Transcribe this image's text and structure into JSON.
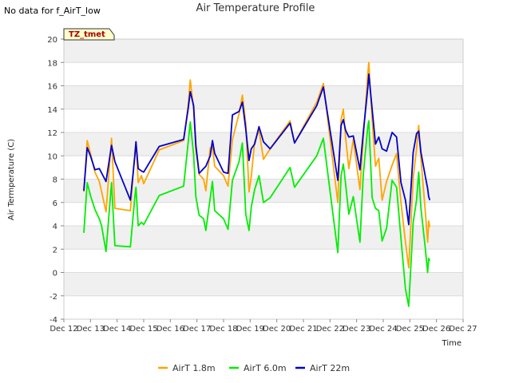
{
  "header": {
    "no_data_note": "No data for f_AirT_low",
    "title": "Air Temperature Profile"
  },
  "tag_box": {
    "text": "TZ_tmet",
    "fill": "#ffffcc",
    "text_color": "#aa0000"
  },
  "colors": {
    "band": "#f0f0f0",
    "grid": "#dcdcdc"
  },
  "chart_data": {
    "type": "line",
    "title": "Air Temperature Profile",
    "xlabel": "Time",
    "ylabel": "Air Termperature (C)",
    "xlim": [
      "2023-12-12",
      "2023-12-27"
    ],
    "ylim": [
      -4,
      20
    ],
    "x_tick_values": [
      "2023-12-12",
      "2023-12-13",
      "2023-12-14",
      "2023-12-15",
      "2023-12-16",
      "2023-12-17",
      "2023-12-18",
      "2023-12-19",
      "2023-12-20",
      "2023-12-21",
      "2023-12-22",
      "2023-12-23",
      "2023-12-24",
      "2023-12-25",
      "2023-12-26",
      "2023-12-27"
    ],
    "x_tick_labels": [
      "Dec 12",
      "Dec 13",
      "Dec 14",
      "Dec 15",
      "Dec 16",
      "Dec 17",
      "Dec 18",
      "Dec 19",
      "Dec 20",
      "Dec 21",
      "Dec 22",
      "Dec 23",
      "Dec 24",
      "Dec 25",
      "Dec 26",
      "Dec 27"
    ],
    "y_ticks": [
      -4,
      -2,
      0,
      2,
      4,
      6,
      8,
      10,
      12,
      14,
      16,
      18,
      20
    ],
    "grid": true,
    "legend_position": "bottom-center",
    "series": [
      {
        "name": "AirT 1.8m",
        "color": "#ffa500",
        "points": [
          [
            "2023-12-12 18:00",
            6.9
          ],
          [
            "2023-12-12 21:00",
            11.3
          ],
          [
            "2023-12-13 00:00",
            10.2
          ],
          [
            "2023-12-13 04:00",
            8.6
          ],
          [
            "2023-12-13 08:00",
            7.8
          ],
          [
            "2023-12-13 14:00",
            5.2
          ],
          [
            "2023-12-13 19:00",
            11.5
          ],
          [
            "2023-12-13 22:00",
            5.5
          ],
          [
            "2023-12-14 12:00",
            5.3
          ],
          [
            "2023-12-14 16:00",
            10.3
          ],
          [
            "2023-12-14 17:00",
            11.2
          ],
          [
            "2023-12-14 19:00",
            7.7
          ],
          [
            "2023-12-14 22:00",
            8.3
          ],
          [
            "2023-12-15 00:00",
            7.6
          ],
          [
            "2023-12-15 14:00",
            10.5
          ],
          [
            "2023-12-16 12:00",
            11.3
          ],
          [
            "2023-12-16 16:00",
            14.3
          ],
          [
            "2023-12-16 18:00",
            16.5
          ],
          [
            "2023-12-16 21:00",
            14.0
          ],
          [
            "2023-12-16 23:00",
            10.5
          ],
          [
            "2023-12-17 02:00",
            8.4
          ],
          [
            "2023-12-17 06:00",
            8.0
          ],
          [
            "2023-12-17 08:00",
            7.0
          ],
          [
            "2023-12-17 12:00",
            10.7
          ],
          [
            "2023-12-17 14:00",
            10.8
          ],
          [
            "2023-12-17 16:00",
            9.1
          ],
          [
            "2023-12-18 00:00",
            8.3
          ],
          [
            "2023-12-18 04:00",
            7.4
          ],
          [
            "2023-12-18 08:00",
            11.4
          ],
          [
            "2023-12-18 14:00",
            13.6
          ],
          [
            "2023-12-18 17:00",
            15.2
          ],
          [
            "2023-12-18 20:00",
            12.8
          ],
          [
            "2023-12-18 23:00",
            6.9
          ],
          [
            "2023-12-19 01:00",
            8.2
          ],
          [
            "2023-12-19 04:00",
            11.2
          ],
          [
            "2023-12-19 08:00",
            12.2
          ],
          [
            "2023-12-19 12:00",
            9.7
          ],
          [
            "2023-12-19 18:00",
            10.6
          ],
          [
            "2023-12-20 12:00",
            13.0
          ],
          [
            "2023-12-20 16:00",
            11.1
          ],
          [
            "2023-12-21 12:00",
            14.6
          ],
          [
            "2023-12-21 18:00",
            16.2
          ],
          [
            "2023-12-22 07:00",
            6.0
          ],
          [
            "2023-12-22 10:00",
            13.1
          ],
          [
            "2023-12-22 12:00",
            14.0
          ],
          [
            "2023-12-22 14:00",
            11.6
          ],
          [
            "2023-12-22 17:00",
            8.9
          ],
          [
            "2023-12-22 21:00",
            11.4
          ],
          [
            "2023-12-23 03:00",
            7.1
          ],
          [
            "2023-12-23 06:00",
            11.5
          ],
          [
            "2023-12-23 10:00",
            17.0
          ],
          [
            "2023-12-23 11:00",
            18.0
          ],
          [
            "2023-12-23 14:00",
            13.1
          ],
          [
            "2023-12-23 17:00",
            9.1
          ],
          [
            "2023-12-23 20:00",
            9.8
          ],
          [
            "2023-12-23 23:00",
            6.2
          ],
          [
            "2023-12-24 03:00",
            7.8
          ],
          [
            "2023-12-24 08:00",
            9.2
          ],
          [
            "2023-12-24 12:00",
            10.2
          ],
          [
            "2023-12-24 16:00",
            6.0
          ],
          [
            "2023-12-24 20:00",
            2.6
          ],
          [
            "2023-12-24 23:00",
            0.4
          ],
          [
            "2023-12-25 03:00",
            8.1
          ],
          [
            "2023-12-25 06:00",
            10.6
          ],
          [
            "2023-12-25 08:00",
            12.6
          ],
          [
            "2023-12-25 10:00",
            9.8
          ],
          [
            "2023-12-25 14:00",
            5.1
          ],
          [
            "2023-12-25 16:00",
            2.6
          ],
          [
            "2023-12-25 17:00",
            4.4
          ],
          [
            "2023-12-25 18:00",
            3.9
          ]
        ]
      },
      {
        "name": "AirT 6.0m",
        "color": "#00ee00",
        "points": [
          [
            "2023-12-12 18:00",
            3.4
          ],
          [
            "2023-12-12 21:00",
            7.7
          ],
          [
            "2023-12-13 00:00",
            6.6
          ],
          [
            "2023-12-13 04:00",
            5.4
          ],
          [
            "2023-12-13 08:00",
            4.6
          ],
          [
            "2023-12-13 10:00",
            4.0
          ],
          [
            "2023-12-13 14:00",
            1.8
          ],
          [
            "2023-12-13 19:00",
            7.7
          ],
          [
            "2023-12-13 22:00",
            2.3
          ],
          [
            "2023-12-14 12:00",
            2.2
          ],
          [
            "2023-12-14 16:00",
            6.5
          ],
          [
            "2023-12-14 17:00",
            7.3
          ],
          [
            "2023-12-14 19:00",
            4.0
          ],
          [
            "2023-12-14 22:00",
            4.3
          ],
          [
            "2023-12-15 00:00",
            4.1
          ],
          [
            "2023-12-15 14:00",
            6.6
          ],
          [
            "2023-12-16 12:00",
            7.4
          ],
          [
            "2023-12-16 16:00",
            11.1
          ],
          [
            "2023-12-16 18:00",
            12.9
          ],
          [
            "2023-12-16 21:00",
            10.1
          ],
          [
            "2023-12-16 23:00",
            6.5
          ],
          [
            "2023-12-17 02:00",
            4.9
          ],
          [
            "2023-12-17 06:00",
            4.6
          ],
          [
            "2023-12-17 08:00",
            3.6
          ],
          [
            "2023-12-17 12:00",
            6.4
          ],
          [
            "2023-12-17 14:00",
            7.8
          ],
          [
            "2023-12-17 16:00",
            5.3
          ],
          [
            "2023-12-18 00:00",
            4.6
          ],
          [
            "2023-12-18 04:00",
            3.7
          ],
          [
            "2023-12-18 08:00",
            7.9
          ],
          [
            "2023-12-18 14:00",
            9.5
          ],
          [
            "2023-12-18 17:00",
            11.1
          ],
          [
            "2023-12-18 20:00",
            5.0
          ],
          [
            "2023-12-18 23:00",
            3.6
          ],
          [
            "2023-12-19 01:00",
            5.6
          ],
          [
            "2023-12-19 04:00",
            7.1
          ],
          [
            "2023-12-19 08:00",
            8.3
          ],
          [
            "2023-12-19 12:00",
            6.0
          ],
          [
            "2023-12-19 18:00",
            6.4
          ],
          [
            "2023-12-20 12:00",
            9.0
          ],
          [
            "2023-12-20 16:00",
            7.3
          ],
          [
            "2023-12-21 12:00",
            10.0
          ],
          [
            "2023-12-21 18:00",
            11.5
          ],
          [
            "2023-12-22 07:00",
            1.7
          ],
          [
            "2023-12-22 10:00",
            8.3
          ],
          [
            "2023-12-22 12:00",
            9.3
          ],
          [
            "2023-12-22 14:00",
            7.6
          ],
          [
            "2023-12-22 17:00",
            5.0
          ],
          [
            "2023-12-22 21:00",
            6.5
          ],
          [
            "2023-12-23 03:00",
            2.6
          ],
          [
            "2023-12-23 06:00",
            8.4
          ],
          [
            "2023-12-23 10:00",
            12.5
          ],
          [
            "2023-12-23 11:00",
            13.0
          ],
          [
            "2023-12-23 14:00",
            6.4
          ],
          [
            "2023-12-23 17:00",
            5.5
          ],
          [
            "2023-12-23 20:00",
            5.3
          ],
          [
            "2023-12-23 23:00",
            2.7
          ],
          [
            "2023-12-24 03:00",
            3.8
          ],
          [
            "2023-12-24 08:00",
            7.9
          ],
          [
            "2023-12-24 12:00",
            7.3
          ],
          [
            "2023-12-24 16:00",
            2.9
          ],
          [
            "2023-12-24 20:00",
            -1.4
          ],
          [
            "2023-12-24 23:00",
            -2.9
          ],
          [
            "2023-12-25 03:00",
            4.3
          ],
          [
            "2023-12-25 06:00",
            6.2
          ],
          [
            "2023-12-25 08:00",
            8.6
          ],
          [
            "2023-12-25 10:00",
            5.5
          ],
          [
            "2023-12-25 14:00",
            2.0
          ],
          [
            "2023-12-25 16:00",
            0.0
          ],
          [
            "2023-12-25 17:00",
            1.2
          ],
          [
            "2023-12-25 18:00",
            1.0
          ]
        ]
      },
      {
        "name": "AirT 22m",
        "color": "#0000cc",
        "points": [
          [
            "2023-12-12 18:00",
            7.0
          ],
          [
            "2023-12-12 21:00",
            10.7
          ],
          [
            "2023-12-13 00:00",
            10.0
          ],
          [
            "2023-12-13 04:00",
            8.8
          ],
          [
            "2023-12-13 08:00",
            8.9
          ],
          [
            "2023-12-13 14:00",
            7.8
          ],
          [
            "2023-12-13 19:00",
            10.9
          ],
          [
            "2023-12-13 22:00",
            9.5
          ],
          [
            "2023-12-14 12:00",
            6.2
          ],
          [
            "2023-12-14 16:00",
            10.0
          ],
          [
            "2023-12-14 17:00",
            11.2
          ],
          [
            "2023-12-14 19:00",
            8.9
          ],
          [
            "2023-12-14 22:00",
            8.7
          ],
          [
            "2023-12-15 00:00",
            8.6
          ],
          [
            "2023-12-15 14:00",
            10.8
          ],
          [
            "2023-12-16 12:00",
            11.4
          ],
          [
            "2023-12-16 16:00",
            14.0
          ],
          [
            "2023-12-16 18:00",
            15.5
          ],
          [
            "2023-12-16 21:00",
            14.3
          ],
          [
            "2023-12-16 23:00",
            10.9
          ],
          [
            "2023-12-17 02:00",
            8.5
          ],
          [
            "2023-12-17 06:00",
            8.9
          ],
          [
            "2023-12-17 08:00",
            9.1
          ],
          [
            "2023-12-17 12:00",
            10.0
          ],
          [
            "2023-12-17 14:00",
            11.3
          ],
          [
            "2023-12-17 16:00",
            10.2
          ],
          [
            "2023-12-18 00:00",
            8.6
          ],
          [
            "2023-12-18 04:00",
            8.5
          ],
          [
            "2023-12-18 08:00",
            13.5
          ],
          [
            "2023-12-18 14:00",
            13.8
          ],
          [
            "2023-12-18 17:00",
            14.6
          ],
          [
            "2023-12-18 20:00",
            12.3
          ],
          [
            "2023-12-18 23:00",
            9.6
          ],
          [
            "2023-12-19 01:00",
            10.6
          ],
          [
            "2023-12-19 04:00",
            11.0
          ],
          [
            "2023-12-19 08:00",
            12.5
          ],
          [
            "2023-12-19 12:00",
            11.2
          ],
          [
            "2023-12-19 18:00",
            10.6
          ],
          [
            "2023-12-20 12:00",
            12.8
          ],
          [
            "2023-12-20 16:00",
            11.1
          ],
          [
            "2023-12-21 12:00",
            14.3
          ],
          [
            "2023-12-21 18:00",
            15.9
          ],
          [
            "2023-12-22 07:00",
            7.9
          ],
          [
            "2023-12-22 10:00",
            12.6
          ],
          [
            "2023-12-22 12:00",
            13.1
          ],
          [
            "2023-12-22 14:00",
            12.2
          ],
          [
            "2023-12-22 17:00",
            11.6
          ],
          [
            "2023-12-22 21:00",
            11.7
          ],
          [
            "2023-12-23 03:00",
            8.8
          ],
          [
            "2023-12-23 06:00",
            12.0
          ],
          [
            "2023-12-23 10:00",
            15.8
          ],
          [
            "2023-12-23 11:00",
            17.0
          ],
          [
            "2023-12-23 14:00",
            14.0
          ],
          [
            "2023-12-23 17:00",
            11.0
          ],
          [
            "2023-12-23 20:00",
            11.6
          ],
          [
            "2023-12-23 23:00",
            10.6
          ],
          [
            "2023-12-24 03:00",
            10.4
          ],
          [
            "2023-12-24 08:00",
            12.0
          ],
          [
            "2023-12-24 12:00",
            11.6
          ],
          [
            "2023-12-24 16:00",
            7.7
          ],
          [
            "2023-12-24 20:00",
            6.2
          ],
          [
            "2023-12-24 23:00",
            4.1
          ],
          [
            "2023-12-25 03:00",
            10.3
          ],
          [
            "2023-12-25 06:00",
            11.9
          ],
          [
            "2023-12-25 08:00",
            12.1
          ],
          [
            "2023-12-25 10:00",
            10.3
          ],
          [
            "2023-12-25 14:00",
            8.2
          ],
          [
            "2023-12-25 16:00",
            7.2
          ],
          [
            "2023-12-25 17:00",
            6.5
          ],
          [
            "2023-12-25 18:00",
            6.2
          ]
        ]
      }
    ]
  }
}
